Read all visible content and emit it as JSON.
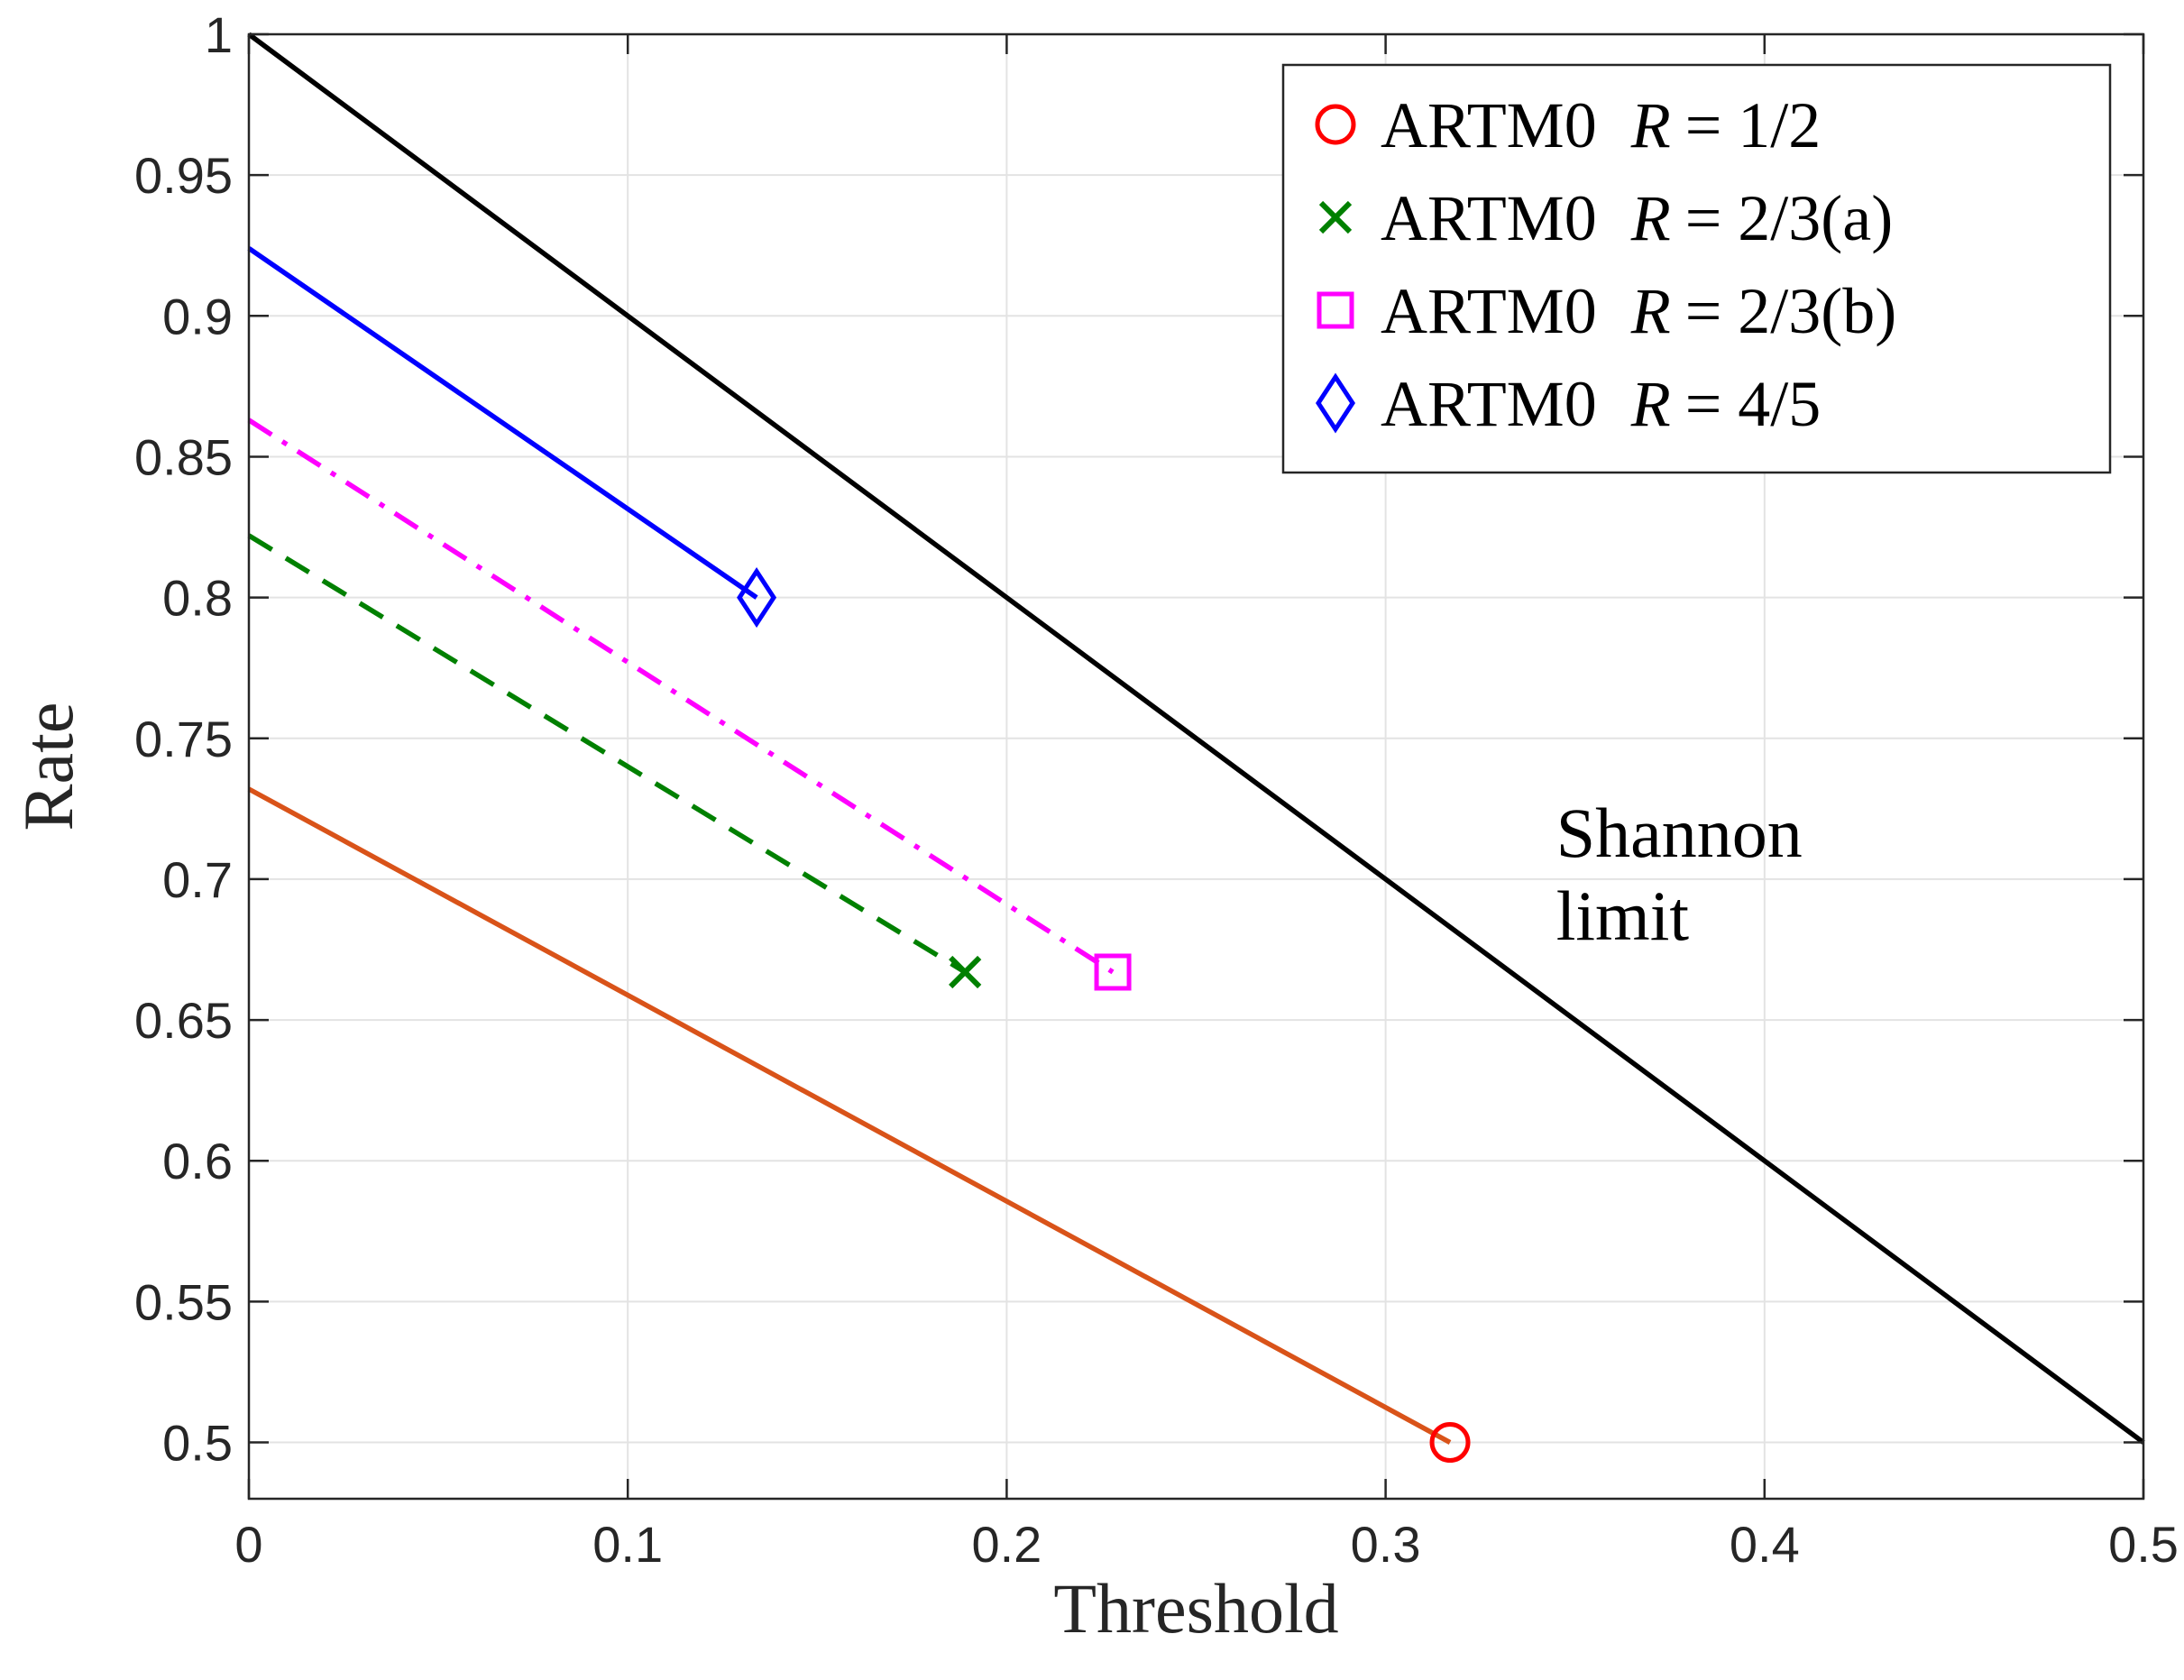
{
  "chart_data": {
    "type": "line",
    "title": "",
    "xlabel": "Threshold",
    "ylabel": "Rate",
    "xlim": [
      0,
      0.5
    ],
    "ylim": [
      0.48,
      1
    ],
    "x_ticks": [
      0,
      0.1,
      0.2,
      0.3,
      0.4,
      0.5
    ],
    "x_tick_labels": [
      "0",
      "0.1",
      "0.2",
      "0.3",
      "0.4",
      "0.5"
    ],
    "y_ticks": [
      0.5,
      0.55,
      0.6,
      0.65,
      0.7,
      0.75,
      0.8,
      0.85,
      0.9,
      0.95,
      1
    ],
    "y_tick_labels": [
      "0.5",
      "0.55",
      "0.6",
      "0.65",
      "0.7",
      "0.75",
      "0.8",
      "0.85",
      "0.9",
      "0.95",
      "1"
    ],
    "grid": true,
    "legend_position": "top-right",
    "series": [
      {
        "name": "Shannon limit",
        "color": "#000000",
        "style": "solid",
        "marker": "none",
        "in_legend": false,
        "x": [
          0,
          0.5
        ],
        "y": [
          1,
          0.5
        ]
      },
      {
        "name": "ARTM0 R = 1/2",
        "legend_prefix": "ARTM0",
        "legend_var": "R",
        "legend_value": "= 1/2",
        "color": "#D95319",
        "marker_color": "#FF0000",
        "style": "solid",
        "marker": "circle",
        "in_legend": true,
        "x": [
          0,
          0.317
        ],
        "y": [
          0.732,
          0.5
        ]
      },
      {
        "name": "ARTM0 R = 2/3(a)",
        "legend_prefix": "ARTM0",
        "legend_var": "R",
        "legend_value": "= 2/3(a)",
        "color": "#008000",
        "marker_color": "#008000",
        "style": "dashed",
        "marker": "x",
        "in_legend": true,
        "x": [
          0,
          0.189
        ],
        "y": [
          0.822,
          0.667
        ]
      },
      {
        "name": "ARTM0 R = 2/3(b)",
        "legend_prefix": "ARTM0",
        "legend_var": "R",
        "legend_value": "= 2/3(b)",
        "color": "#FF00FF",
        "marker_color": "#FF00FF",
        "style": "dashdot",
        "marker": "square",
        "in_legend": true,
        "x": [
          0,
          0.228
        ],
        "y": [
          0.863,
          0.667
        ]
      },
      {
        "name": "ARTM0 R = 4/5",
        "legend_prefix": "ARTM0",
        "legend_var": "R",
        "legend_value": "= 4/5",
        "color": "#0000FF",
        "marker_color": "#0000FF",
        "style": "solid",
        "marker": "diamond",
        "in_legend": true,
        "x": [
          0,
          0.134
        ],
        "y": [
          0.924,
          0.8
        ]
      }
    ],
    "annotations": [
      {
        "lines": [
          "Shannon",
          "limit"
        ],
        "x": 0.345,
        "y": 0.715
      }
    ]
  }
}
